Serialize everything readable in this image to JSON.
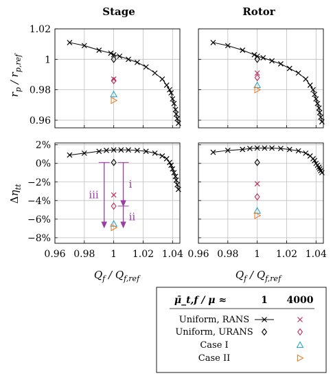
{
  "chart_data": [
    {
      "type": "scatter",
      "title": "Stage",
      "xlabel": "",
      "ylabel": "r_p / r_p,ref",
      "xlim": [
        0.96,
        1.045
      ],
      "ylim": [
        0.955,
        1.02
      ],
      "xticks": [
        "0.96",
        "0.98",
        "1",
        "1.02",
        "1.04"
      ],
      "yticks": [
        "0.96",
        "0.98",
        "1",
        "1.02"
      ],
      "series": [
        {
          "key": "uniform_rans",
          "x": [
            0.97,
            0.98,
            0.99,
            0.998,
            1.0,
            1.004,
            1.01,
            1.016,
            1.022,
            1.028,
            1.033,
            1.036,
            1.038,
            1.039,
            1.04,
            1.041,
            1.042,
            1.0425,
            1.0432,
            1.044
          ],
          "y": [
            1.011,
            1.009,
            1.006,
            1.004,
            1.003,
            1.002,
            1.0,
            0.998,
            0.995,
            0.991,
            0.987,
            0.983,
            0.98,
            0.978,
            0.974,
            0.971,
            0.967,
            0.964,
            0.961,
            0.958
          ]
        },
        {
          "key": "uniform_urans_1",
          "x": [
            1.0
          ],
          "y": [
            1.0
          ]
        },
        {
          "key": "rans_4000",
          "x": [
            1.0
          ],
          "y": [
            0.987
          ]
        },
        {
          "key": "urans_4000",
          "x": [
            1.0
          ],
          "y": [
            0.986
          ]
        },
        {
          "key": "case1_4000",
          "x": [
            1.0
          ],
          "y": [
            0.977
          ]
        },
        {
          "key": "case2_4000",
          "x": [
            1.0
          ],
          "y": [
            0.973
          ]
        }
      ]
    },
    {
      "type": "scatter",
      "title": "Rotor",
      "xlabel": "",
      "ylabel": "",
      "xlim": [
        0.96,
        1.045
      ],
      "ylim": [
        0.955,
        1.02
      ],
      "xticks": [
        "0.96",
        "0.98",
        "1",
        "1.02",
        "1.04"
      ],
      "yticks": [],
      "series": [
        {
          "key": "uniform_rans",
          "x": [
            0.97,
            0.98,
            0.99,
            0.998,
            1.0,
            1.004,
            1.01,
            1.016,
            1.022,
            1.028,
            1.033,
            1.036,
            1.038,
            1.039,
            1.04,
            1.041,
            1.042,
            1.0425,
            1.0432,
            1.044
          ],
          "y": [
            1.011,
            1.009,
            1.006,
            1.003,
            1.002,
            1.001,
            0.999,
            0.997,
            0.994,
            0.991,
            0.987,
            0.983,
            0.98,
            0.977,
            0.974,
            0.971,
            0.968,
            0.965,
            0.962,
            0.959
          ]
        },
        {
          "key": "uniform_urans_1",
          "x": [
            1.0
          ],
          "y": [
            1.0
          ]
        },
        {
          "key": "rans_4000",
          "x": [
            1.0
          ],
          "y": [
            0.991
          ]
        },
        {
          "key": "urans_4000",
          "x": [
            1.0
          ],
          "y": [
            0.988
          ]
        },
        {
          "key": "case1_4000",
          "x": [
            1.0
          ],
          "y": [
            0.983
          ]
        },
        {
          "key": "case2_4000",
          "x": [
            1.0
          ],
          "y": [
            0.98
          ]
        }
      ]
    },
    {
      "type": "scatter",
      "title": "",
      "xlabel": "Q_f / Q_f,ref",
      "ylabel": "Δη_tt",
      "xlim": [
        0.96,
        1.045
      ],
      "ylim": [
        -8.6,
        2.2
      ],
      "xticks": [
        "0.96",
        "0.98",
        "1",
        "1.02",
        "1.04"
      ],
      "yticks": [
        "2%",
        "0%",
        "−2%",
        "−4%",
        "−6%",
        "−8%"
      ],
      "series": [
        {
          "key": "uniform_rans",
          "x": [
            0.97,
            0.98,
            0.99,
            0.995,
            1.0,
            1.005,
            1.01,
            1.016,
            1.022,
            1.028,
            1.033,
            1.036,
            1.038,
            1.039,
            1.04,
            1.041,
            1.042,
            1.0425,
            1.0432,
            1.044
          ],
          "y": [
            0.9,
            1.1,
            1.3,
            1.4,
            1.45,
            1.45,
            1.45,
            1.4,
            1.3,
            1.1,
            0.8,
            0.5,
            0.1,
            -0.2,
            -0.6,
            -1.0,
            -1.4,
            -1.8,
            -2.3,
            -2.8
          ]
        },
        {
          "key": "uniform_urans_1",
          "x": [
            1.0
          ],
          "y": [
            0.1
          ]
        },
        {
          "key": "rans_4000",
          "x": [
            1.0
          ],
          "y": [
            -3.4
          ]
        },
        {
          "key": "urans_4000",
          "x": [
            1.0
          ],
          "y": [
            -4.6
          ]
        },
        {
          "key": "case1_4000",
          "x": [
            1.0
          ],
          "y": [
            -6.5
          ]
        },
        {
          "key": "case2_4000",
          "x": [
            1.0
          ],
          "y": [
            -6.9
          ]
        }
      ],
      "annotations": [
        {
          "label": "i",
          "x": 1.0065,
          "from": 0.1,
          "to": -4.6
        },
        {
          "label": "ii",
          "x": 1.0065,
          "from": -4.6,
          "to": -6.9
        },
        {
          "label": "iii",
          "x": 0.9935,
          "from": 0.1,
          "to": -6.9
        }
      ]
    },
    {
      "type": "scatter",
      "title": "",
      "xlabel": "Q_f / Q_f,ref",
      "ylabel": "",
      "xlim": [
        0.96,
        1.045
      ],
      "ylim": [
        -8.6,
        2.2
      ],
      "xticks": [
        "0.96",
        "0.98",
        "1",
        "1.02",
        "1.04"
      ],
      "yticks": [],
      "series": [
        {
          "key": "uniform_rans",
          "x": [
            0.97,
            0.98,
            0.99,
            0.995,
            1.0,
            1.005,
            1.01,
            1.016,
            1.022,
            1.028,
            1.033,
            1.036,
            1.038,
            1.039,
            1.04,
            1.041,
            1.042,
            1.0425,
            1.0432,
            1.044
          ],
          "y": [
            1.2,
            1.4,
            1.5,
            1.6,
            1.65,
            1.65,
            1.65,
            1.6,
            1.5,
            1.35,
            1.1,
            0.8,
            0.5,
            0.3,
            0.0,
            -0.2,
            -0.4,
            -0.6,
            -0.8,
            -1.0
          ]
        },
        {
          "key": "uniform_urans_1",
          "x": [
            1.0
          ],
          "y": [
            0.1
          ]
        },
        {
          "key": "rans_4000",
          "x": [
            1.0
          ],
          "y": [
            -2.2
          ]
        },
        {
          "key": "urans_4000",
          "x": [
            1.0
          ],
          "y": [
            -3.6
          ]
        },
        {
          "key": "case1_4000",
          "x": [
            1.0
          ],
          "y": [
            -5.1
          ]
        },
        {
          "key": "case2_4000",
          "x": [
            1.0
          ],
          "y": [
            -5.6
          ]
        }
      ]
    }
  ],
  "legend": {
    "header": "μ̄_t,f / μ ≈",
    "col1": "1",
    "col2": "4000",
    "rows": [
      {
        "label": "Uniform, RANS",
        "key": "rans"
      },
      {
        "label": "Uniform, URANS",
        "key": "urans"
      },
      {
        "label": "Case I",
        "key": "case1"
      },
      {
        "label": "Case II",
        "key": "case2"
      }
    ]
  },
  "colors": {
    "rans_4000": "#b5305a",
    "urans_4000": "#b5305a",
    "case1": "#2aa7c9",
    "case2": "#ef7d2a",
    "annotation": "#9a3fa2",
    "baseline": "#000000"
  }
}
